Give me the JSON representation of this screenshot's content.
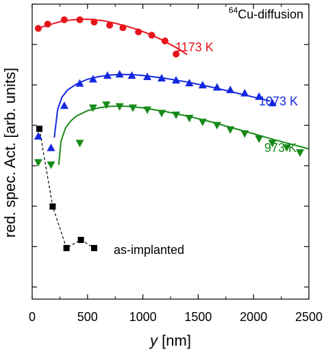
{
  "chart_data": {
    "type": "scatter",
    "title": "",
    "xlabel": "nm",
    "xlabel_var": "y",
    "ylabel": "red. spec. Act. [arb. units]",
    "xlim": [
      0,
      2500
    ],
    "xticks": [
      0,
      500,
      1000,
      1500,
      2000,
      2500
    ],
    "xtick_labels": [
      "0",
      "500",
      "1000",
      "1500",
      "2000",
      "2500"
    ],
    "ylim": [
      0.0005,
      10000
    ],
    "yscale": "log",
    "ytick_labels_shown": false,
    "grid": false,
    "annotation": {
      "sup": "64",
      "text": "Cu-diffusion"
    },
    "series": [
      {
        "name": "1173 K",
        "color": "#e8141c",
        "marker": "circle",
        "x": [
          55,
          140,
          290,
          430,
          560,
          700,
          820,
          960,
          1080,
          1200,
          1300
        ],
        "y": [
          2500,
          3200,
          4100,
          4100,
          3600,
          3000,
          2600,
          2050,
          1700,
          1220,
          580
        ],
        "fit": {
          "x": [
            55,
            150,
            250,
            350,
            450,
            550,
            650,
            750,
            850,
            950,
            1050,
            1150,
            1250,
            1330,
            1400
          ],
          "y": [
            2550,
            3050,
            3650,
            4050,
            4250,
            4150,
            3850,
            3350,
            2850,
            2350,
            1850,
            1400,
            1000,
            760,
            560
          ]
        }
      },
      {
        "name": "1073 K",
        "color": "#1428e0",
        "marker": "triangle-up",
        "x": [
          55,
          170,
          290,
          430,
          550,
          680,
          790,
          900,
          1040,
          1170,
          1300,
          1420,
          1540,
          1670,
          1790,
          1920,
          2050,
          2170
        ],
        "y": [
          5.4,
          2.8,
          31,
          110,
          140,
          172,
          185,
          172,
          160,
          148,
          132,
          112,
          100,
          88,
          76,
          63,
          52,
          36
        ],
        "fit": {
          "x": [
            200,
            230,
            270,
            320,
            400,
            500,
            600,
            700,
            800,
            900,
            1000,
            1200,
            1400,
            1600,
            1800,
            2000,
            2150
          ],
          "y": [
            5,
            25,
            50,
            75,
            105,
            138,
            160,
            175,
            182,
            180,
            172,
            146,
            118,
            91,
            68,
            50,
            40
          ]
        }
      },
      {
        "name": "973 K",
        "color": "#168a18",
        "marker": "triangle-down",
        "x": [
          55,
          170,
          430,
          550,
          670,
          790,
          910,
          1040,
          1170,
          1300,
          1420,
          1540,
          1670,
          1790,
          1920,
          2050,
          2170,
          2300,
          2420
        ],
        "y": [
          1.2,
          1.05,
          3.6,
          27,
          32,
          29,
          27,
          24,
          20,
          18,
          15,
          12,
          10,
          7.8,
          6.2,
          4.6,
          3.6,
          2.8,
          2.1
        ],
        "fit": {
          "x": [
            240,
            260,
            300,
            350,
            400,
            500,
            600,
            700,
            800,
            900,
            1000,
            1200,
            1400,
            1600,
            1800,
            2000,
            2200,
            2400,
            2500
          ],
          "y": [
            1.05,
            4,
            8.5,
            13,
            17,
            23,
            27,
            29.5,
            30,
            29,
            27,
            22,
            17,
            12.5,
            8.8,
            6.2,
            4.3,
            3.1,
            2.6
          ]
        }
      },
      {
        "name": "as-implanted",
        "color": "#000000",
        "marker": "square",
        "connected": true,
        "x": [
          65,
          185,
          310,
          440,
          560
        ],
        "y": [
          8.2,
          0.098,
          0.0092,
          0.0146,
          0.0092
        ]
      }
    ]
  }
}
